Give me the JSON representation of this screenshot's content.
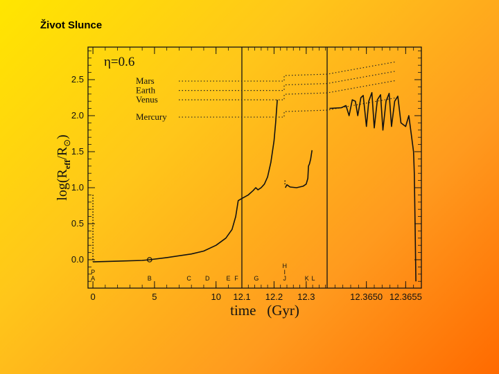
{
  "slide": {
    "title": "Život Slunce"
  },
  "chart_data": {
    "type": "line",
    "eta_label": "η=0.6",
    "ylabel": "log(R",
    "ylabel_sub": "eff",
    "ylabel_tail": "/R",
    "ylabel_sun": "⊙",
    "ylabel_close": ")",
    "xlabel": "time   (Gyr)",
    "ylim": [
      -0.4,
      2.95
    ],
    "yticks": [
      0.0,
      0.5,
      1.0,
      1.5,
      2.0,
      2.5
    ],
    "ytick_labels": [
      "0.0",
      "0.5",
      "1.0",
      "1.5",
      "2.0",
      "2.5"
    ],
    "panels": [
      {
        "xlim": [
          -0.4,
          12.1
        ],
        "ticks": [
          0,
          5,
          10
        ],
        "tick_labels": [
          "0",
          "5",
          "10"
        ],
        "minor_step": 1
      },
      {
        "xlim": [
          12.1,
          12.365
        ],
        "ticks": [
          12.1,
          12.2,
          12.3
        ],
        "tick_labels": [
          "12.1",
          "12.2",
          "12.3"
        ],
        "minor_step": 0.02
      },
      {
        "xlim": [
          12.3645,
          12.3657
        ],
        "ticks": [
          12.365,
          12.3655
        ],
        "tick_labels": [
          "12.3650",
          "12.3655"
        ],
        "minor_step": 0.0001
      }
    ],
    "planets": [
      {
        "name": "Mars",
        "log_r": 2.48
      },
      {
        "name": "Earth",
        "log_r": 2.35
      },
      {
        "name": "Venus",
        "log_r": 2.22
      },
      {
        "name": "Mercury",
        "log_r": 1.98
      }
    ],
    "phase_markers": [
      {
        "panel": 0,
        "t": 0,
        "labels": [
          "P",
          "A"
        ]
      },
      {
        "panel": 0,
        "t": 4.6,
        "labels": [
          "B"
        ]
      },
      {
        "panel": 0,
        "t": 7.8,
        "labels": [
          "C"
        ]
      },
      {
        "panel": 0,
        "t": 9.3,
        "labels": [
          "D"
        ]
      },
      {
        "panel": 0,
        "t": 11.0,
        "labels": [
          "E"
        ]
      },
      {
        "panel": 0,
        "t": 11.65,
        "labels": [
          "F"
        ]
      },
      {
        "panel": 1,
        "t": 12.145,
        "labels": [
          "G"
        ]
      },
      {
        "panel": 1,
        "t": 12.233,
        "labels": [
          "H",
          "I",
          "J"
        ]
      },
      {
        "panel": 1,
        "t": 12.302,
        "labels": [
          "K"
        ]
      },
      {
        "panel": 1,
        "t": 12.322,
        "labels": [
          "L"
        ]
      }
    ],
    "series": [
      {
        "panel": 0,
        "points": [
          [
            0,
            -0.03
          ],
          [
            2,
            -0.02
          ],
          [
            4,
            -0.01
          ],
          [
            4.6,
            0.0
          ],
          [
            6,
            0.03
          ],
          [
            8,
            0.08
          ],
          [
            9,
            0.12
          ],
          [
            10,
            0.2
          ],
          [
            10.8,
            0.3
          ],
          [
            11.3,
            0.42
          ],
          [
            11.6,
            0.6
          ],
          [
            11.8,
            0.82
          ],
          [
            12.1,
            0.85
          ]
        ]
      },
      {
        "panel": 1,
        "points": [
          [
            12.1,
            0.85
          ],
          [
            12.12,
            0.9
          ],
          [
            12.135,
            0.96
          ],
          [
            12.143,
            1.0
          ],
          [
            12.15,
            0.97
          ],
          [
            12.16,
            1.0
          ],
          [
            12.17,
            1.05
          ],
          [
            12.18,
            1.15
          ],
          [
            12.19,
            1.35
          ],
          [
            12.2,
            1.65
          ],
          [
            12.205,
            1.9
          ],
          [
            12.21,
            2.22
          ]
        ]
      },
      {
        "panel": 1,
        "points": [
          [
            12.235,
            1.0
          ],
          [
            12.24,
            1.04
          ],
          [
            12.25,
            1.01
          ],
          [
            12.27,
            1.0
          ],
          [
            12.29,
            1.02
          ],
          [
            12.3,
            1.05
          ],
          [
            12.305,
            1.13
          ],
          [
            12.307,
            1.3
          ],
          [
            12.31,
            1.33
          ],
          [
            12.314,
            1.4
          ],
          [
            12.318,
            1.52
          ]
        ]
      },
      {
        "panel": 2,
        "points": [
          [
            12.36453,
            2.1
          ],
          [
            12.36468,
            2.11
          ],
          [
            12.36474,
            2.14
          ],
          [
            12.36478,
            2.0
          ],
          [
            12.36482,
            2.22
          ],
          [
            12.36486,
            2.2
          ],
          [
            12.36489,
            2.0
          ],
          [
            12.36493,
            2.25
          ],
          [
            12.36496,
            2.28
          ],
          [
            12.365,
            1.85
          ],
          [
            12.36503,
            2.2
          ],
          [
            12.36507,
            2.32
          ],
          [
            12.3651,
            1.83
          ],
          [
            12.36514,
            2.22
          ],
          [
            12.36518,
            2.29
          ],
          [
            12.36521,
            1.8
          ],
          [
            12.36525,
            2.2
          ],
          [
            12.36529,
            2.31
          ],
          [
            12.36532,
            1.85
          ],
          [
            12.36536,
            2.2
          ],
          [
            12.3654,
            2.27
          ],
          [
            12.36544,
            1.9
          ],
          [
            12.3655,
            1.85
          ],
          [
            12.36554,
            2.0
          ],
          [
            12.36557,
            1.75
          ],
          [
            12.3656,
            1.5
          ],
          [
            12.36561,
            1.2
          ],
          [
            12.36562,
            0.5
          ],
          [
            12.36563,
            -0.3
          ]
        ]
      }
    ]
  }
}
